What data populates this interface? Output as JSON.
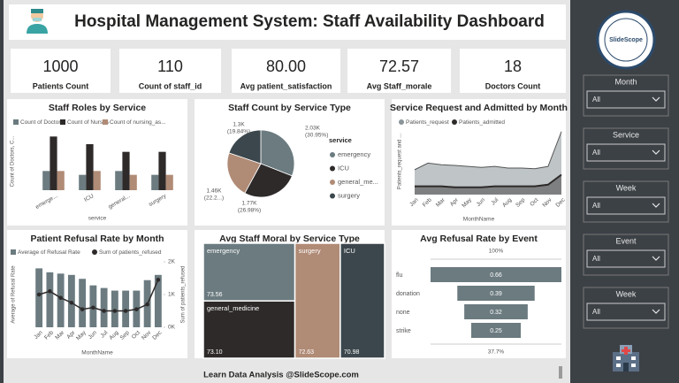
{
  "header": {
    "title": "Hospital Management System: Staff Availability Dashboard"
  },
  "kpis": [
    {
      "value": "1000",
      "label": "Patients Count"
    },
    {
      "value": "110",
      "label": "Count of staff_id"
    },
    {
      "value": "80.00",
      "label": "Avg patient_satisfaction"
    },
    {
      "value": "72.57",
      "label": "Avg Staff_morale"
    },
    {
      "value": "18",
      "label": "Doctors Count"
    }
  ],
  "filters": [
    {
      "label": "Month",
      "value": "All"
    },
    {
      "label": "Service",
      "value": "All"
    },
    {
      "label": "Week",
      "value": "All"
    },
    {
      "label": "Event",
      "value": "All"
    },
    {
      "label": "Week",
      "value": "All"
    }
  ],
  "logo": "SlideScope",
  "footer": "Learn Data Analysis @SlideScope.com",
  "chart_data": [
    {
      "type": "bar",
      "title": "Staff Roles by Service",
      "y_label": "Count of Doctors, C...",
      "x_label": "service",
      "categories": [
        "emerge...",
        "ICU",
        "general...",
        "surgery"
      ],
      "series": [
        {
          "name": "Count of Doctors",
          "color": "#6b7b80",
          "values": [
            5,
            4,
            5,
            4
          ]
        },
        {
          "name": "Count of Nurses",
          "color": "#2e2a2a",
          "values": [
            14,
            12,
            10,
            10
          ]
        },
        {
          "name": "Count of nursing_as...",
          "color": "#b08b76",
          "values": [
            5,
            5,
            4,
            4
          ]
        }
      ],
      "ylim": [
        0,
        15
      ]
    },
    {
      "type": "pie",
      "title": "Staff Count by Service Type",
      "legend_title": "service",
      "categories": [
        "emergency",
        "ICU",
        "general_me...",
        "surgery"
      ],
      "values": [
        2030,
        1770,
        1460,
        1300
      ],
      "value_labels": [
        "2.03K",
        "1.77K",
        "1.46K",
        "1.3K"
      ],
      "percent_labels": [
        "(30.95%)",
        "(26.98%)",
        "(22.2...)",
        "(19.84%)"
      ],
      "colors": [
        "#6b7b80",
        "#2e2a2a",
        "#b08b76",
        "#3b474c"
      ]
    },
    {
      "type": "area",
      "title": "Service Request and Admitted by Month",
      "y_label": "Patients_request and ...",
      "x_label": "MonthName",
      "categories": [
        "Jan",
        "Feb",
        "Mar",
        "Apr",
        "May",
        "Jun",
        "Jul",
        "Aug",
        "Sep",
        "Oct",
        "Nov",
        "Dec"
      ],
      "series": [
        {
          "name": "Patients_request",
          "color": "#8a9599",
          "values": [
            75,
            95,
            90,
            88,
            85,
            82,
            85,
            80,
            80,
            78,
            85,
            190
          ]
        },
        {
          "name": "Patients_admitted",
          "color": "#2e2a2a",
          "values": [
            25,
            25,
            25,
            22,
            22,
            22,
            25,
            25,
            25,
            25,
            30,
            60
          ]
        }
      ],
      "ylim": [
        0,
        200
      ]
    },
    {
      "type": "combo",
      "title": "Patient Refusal Rate by Month",
      "y_label": "Average of Refusal Rate",
      "y2_label": "Sum of patients_refused",
      "x_label": "MonthName",
      "categories": [
        "Jan",
        "Feb",
        "Mar",
        "Apr",
        "May",
        "Jun",
        "Jul",
        "Aug",
        "Sep",
        "Oct",
        "Nov",
        "Dec"
      ],
      "series": [
        {
          "name": "Average of Refusal Rate",
          "color": "#6b7b80",
          "kind": "bar",
          "values": [
            0.45,
            0.42,
            0.41,
            0.4,
            0.37,
            0.32,
            0.3,
            0.28,
            0.28,
            0.28,
            0.36,
            0.4
          ]
        },
        {
          "name": "Sum of patients_refused",
          "color": "#2e2a2a",
          "kind": "line",
          "axis": "y2",
          "values": [
            1000,
            1100,
            900,
            750,
            550,
            600,
            500,
            500,
            500,
            550,
            700,
            1450
          ]
        }
      ],
      "ylim": [
        0,
        0.5
      ],
      "y2lim": [
        0,
        2000
      ],
      "y2ticks": [
        {
          "value": 0,
          "label": "0K"
        },
        {
          "value": 1000,
          "label": "1K"
        },
        {
          "value": 2000,
          "label": "2K"
        }
      ]
    },
    {
      "type": "treemap",
      "title": "Avg Staff Moral by Service Type",
      "categories": [
        "emergency",
        "general_medicine",
        "surgery",
        "ICU"
      ],
      "values": [
        73.56,
        73.1,
        72.63,
        70.98
      ],
      "value_labels": [
        "73.56",
        "73.10",
        "72.63",
        "70.98"
      ],
      "colors": [
        "#6b7b80",
        "#2e2a2a",
        "#b08b76",
        "#3b474c"
      ]
    },
    {
      "type": "funnel",
      "title": "Avg Refusal Rate by Event",
      "categories": [
        "flu",
        "donation",
        "none",
        "strike"
      ],
      "values": [
        0.66,
        0.39,
        0.32,
        0.25
      ],
      "color": "#6b7b80",
      "top_label": "100%",
      "bottom_label": "37.7%"
    }
  ]
}
